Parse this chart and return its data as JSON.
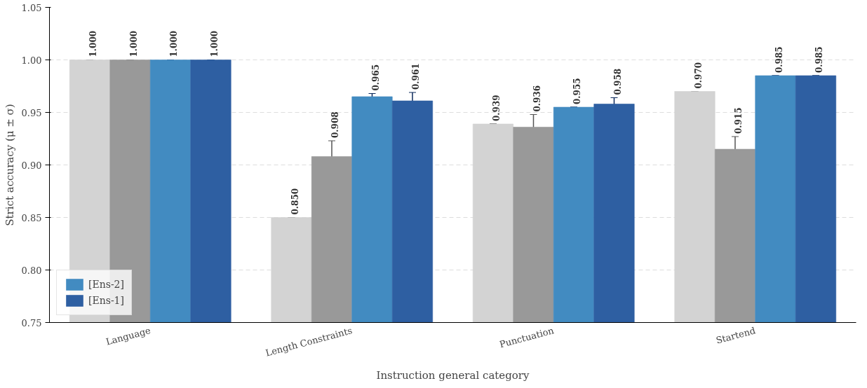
{
  "chart_data": {
    "type": "bar",
    "xlabel": "Instruction general category",
    "ylabel": "Strict accuracy (μ ± σ)",
    "categories": [
      "Language",
      "Length Constraints",
      "Punctuation",
      "Startend"
    ],
    "series": [
      {
        "color": "#d3d3d3",
        "values": [
          1.0,
          0.85,
          0.939,
          0.97
        ],
        "errors": [
          0,
          0,
          0,
          0
        ],
        "value_labels": [
          "1.000",
          "0.850",
          "0.939",
          "0.970"
        ]
      },
      {
        "color": "#999999",
        "values": [
          1.0,
          0.908,
          0.936,
          0.915
        ],
        "errors": [
          0,
          0.015,
          0.012,
          0.012
        ],
        "value_labels": [
          "1.000",
          "0.908",
          "0.936",
          "0.915"
        ]
      },
      {
        "name": "[Ens-2]",
        "color": "#428bc1",
        "values": [
          1.0,
          0.965,
          0.955,
          0.985
        ],
        "errors": [
          0,
          0.003,
          0,
          0
        ],
        "value_labels": [
          "1.000",
          "0.965",
          "0.955",
          "0.985"
        ]
      },
      {
        "name": "[Ens-1]",
        "color": "#2e5fa2",
        "values": [
          1.0,
          0.961,
          0.958,
          0.985
        ],
        "errors": [
          0,
          0.008,
          0.006,
          0
        ],
        "value_labels": [
          "1.000",
          "0.961",
          "0.958",
          "0.985"
        ]
      }
    ],
    "ylim": [
      0.75,
      1.05
    ],
    "yticks": [
      {
        "value": 0.75,
        "label": "0.75"
      },
      {
        "value": 0.8,
        "label": "0.80"
      },
      {
        "value": 0.85,
        "label": "0.85"
      },
      {
        "value": 0.9,
        "label": "0.90"
      },
      {
        "value": 0.95,
        "label": "0.95"
      },
      {
        "value": 1.0,
        "label": "1.00"
      },
      {
        "value": 1.05,
        "label": "1.05"
      }
    ],
    "grid": "y",
    "legend": "bottom left"
  }
}
